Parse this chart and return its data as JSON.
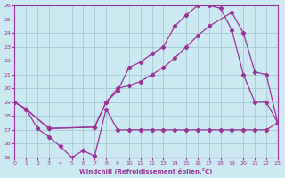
{
  "xlabel": "Windchill (Refroidissement éolien,°C)",
  "bg_color": "#cce8f0",
  "grid_color": "#aaccd8",
  "line_color": "#993399",
  "xlim": [
    0,
    23
  ],
  "ylim": [
    15,
    26
  ],
  "xticks": [
    0,
    1,
    2,
    3,
    4,
    5,
    6,
    7,
    8,
    9,
    10,
    11,
    12,
    13,
    14,
    15,
    16,
    17,
    18,
    19,
    20,
    21,
    22,
    23
  ],
  "yticks": [
    15,
    16,
    17,
    18,
    19,
    20,
    21,
    22,
    23,
    24,
    25,
    26
  ],
  "s1_x": [
    0,
    1,
    2,
    3,
    4,
    5,
    6,
    7,
    8,
    9,
    10,
    11,
    12,
    13,
    14,
    15,
    16,
    17,
    18,
    19,
    20,
    21,
    22,
    23
  ],
  "s1_y": [
    19.0,
    18.5,
    17.1,
    16.5,
    15.8,
    15.0,
    15.5,
    15.1,
    18.5,
    17.0,
    17.0,
    17.0,
    17.0,
    17.0,
    17.0,
    17.0,
    17.0,
    17.0,
    17.0,
    17.0,
    17.0,
    17.0,
    17.0,
    17.5
  ],
  "s2_x": [
    0,
    1,
    3,
    7,
    8,
    9,
    10,
    11,
    12,
    13,
    14,
    15,
    16,
    17,
    18,
    19,
    20,
    21,
    22,
    23
  ],
  "s2_y": [
    19.0,
    18.5,
    17.1,
    17.2,
    19.0,
    19.8,
    21.5,
    21.9,
    22.5,
    23.0,
    24.5,
    25.3,
    26.0,
    26.0,
    25.8,
    24.2,
    21.0,
    19.0,
    19.0,
    17.5
  ],
  "s3_x": [
    0,
    1,
    3,
    7,
    8,
    9,
    10,
    11,
    12,
    13,
    14,
    15,
    16,
    17,
    19,
    20,
    21,
    22,
    23
  ],
  "s3_y": [
    19.0,
    18.5,
    17.1,
    17.2,
    19.0,
    20.0,
    20.2,
    20.5,
    21.0,
    21.5,
    22.2,
    23.0,
    23.8,
    24.5,
    25.5,
    24.0,
    21.2,
    21.0,
    17.5
  ]
}
